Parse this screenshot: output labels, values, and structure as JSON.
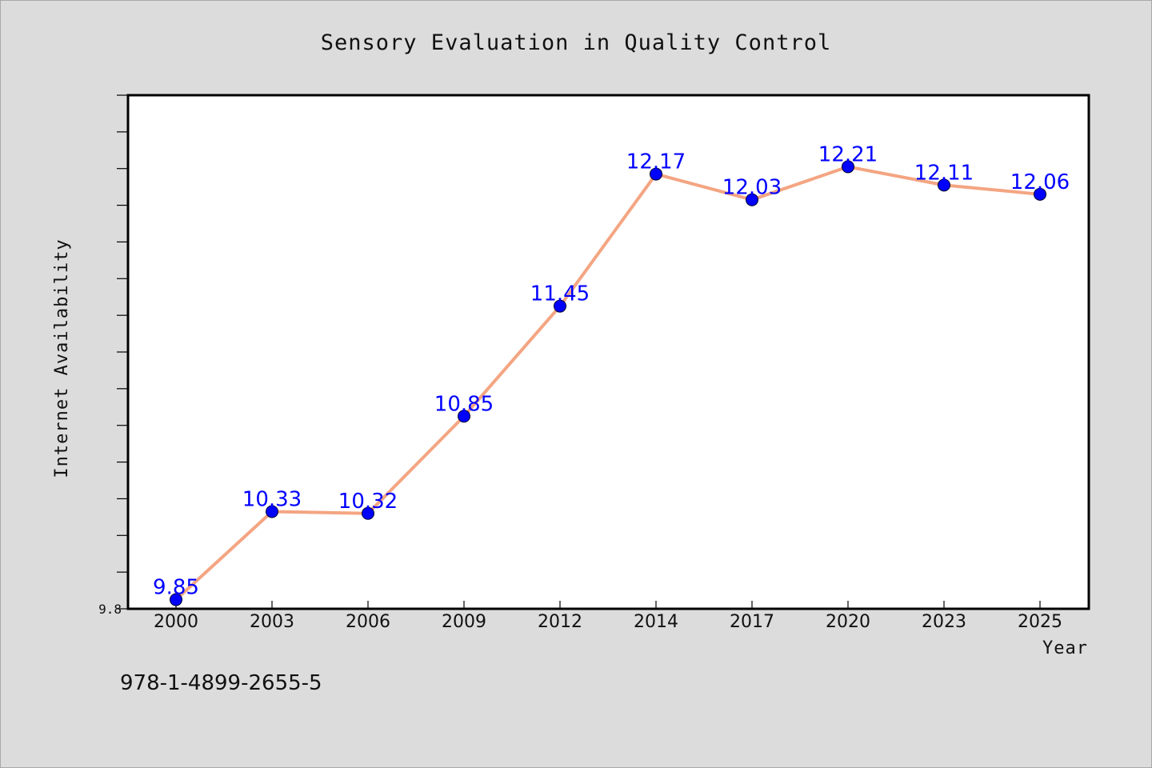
{
  "chart_data": {
    "type": "line",
    "title": "Sensory Evaluation in Quality Control",
    "xlabel": "Year",
    "ylabel": "Internet Availability",
    "categories": [
      "2000",
      "2003",
      "2006",
      "2009",
      "2012",
      "2014",
      "2017",
      "2020",
      "2023",
      "2025"
    ],
    "series": [
      {
        "values": [
          9.85,
          10.33,
          10.32,
          10.85,
          11.45,
          12.17,
          12.03,
          12.21,
          12.11,
          12.06
        ],
        "data_labels": [
          "9.85",
          "10.33",
          "10.32",
          "10.85",
          "11.45",
          "12.17",
          "12.03",
          "12.21",
          "12.11",
          "12.06"
        ]
      }
    ],
    "ylim": [
      9.8,
      12.6
    ],
    "y_tick_labels": [
      "9.8"
    ],
    "y_minor_tick_step": 0.2,
    "grid": false,
    "line_color": "#f4a582",
    "marker_color": "#0000ff",
    "label_color": "#0000ff",
    "background_color": "#dcdcdc",
    "plot_area_color": "#ffffff"
  },
  "footer": {
    "isbn": "978-1-4899-2655-5"
  }
}
